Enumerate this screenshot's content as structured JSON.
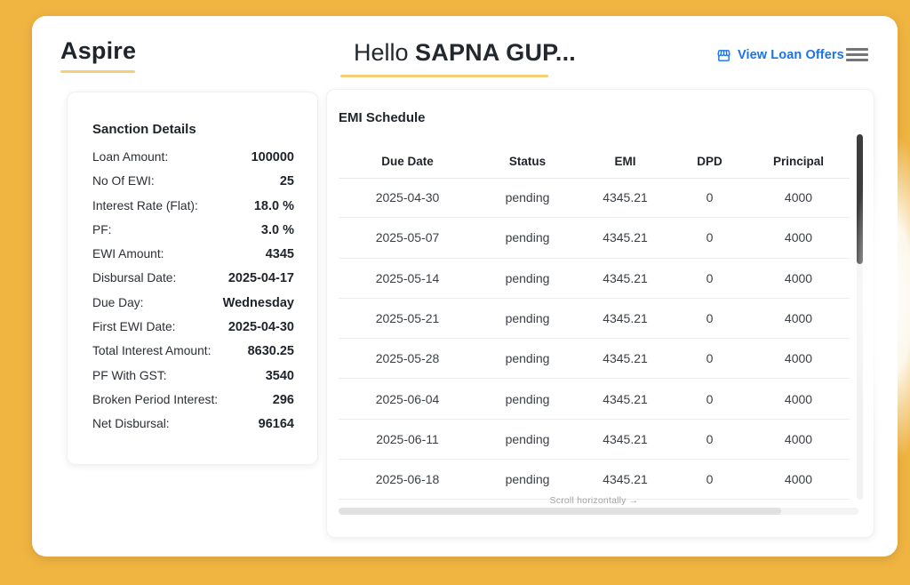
{
  "brand": {
    "name": "Aspire"
  },
  "greeting": {
    "prefix": "Hello ",
    "name": "SAPNA GUP..."
  },
  "header": {
    "view_loan_offers_label": "View Loan Offers"
  },
  "sanction": {
    "title": "Sanction Details",
    "rows": [
      {
        "label": "Loan Amount:",
        "value": "100000"
      },
      {
        "label": "No Of EWI:",
        "value": "25"
      },
      {
        "label": "Interest Rate (Flat):",
        "value": "18.0 %"
      },
      {
        "label": "PF:",
        "value": "3.0 %"
      },
      {
        "label": "EWI Amount:",
        "value": "4345"
      },
      {
        "label": "Disbursal Date:",
        "value": "2025-04-17"
      },
      {
        "label": "Due Day:",
        "value": "Wednesday"
      },
      {
        "label": "First EWI Date:",
        "value": "2025-04-30"
      },
      {
        "label": "Total Interest Amount:",
        "value": "8630.25"
      },
      {
        "label": "PF With GST:",
        "value": "3540"
      },
      {
        "label": "Broken Period Interest:",
        "value": "296"
      },
      {
        "label": "Net Disbursal:",
        "value": "96164"
      }
    ]
  },
  "emi": {
    "title": "EMI Schedule",
    "columns": [
      "Due Date",
      "Status",
      "EMI",
      "DPD",
      "Principal"
    ],
    "rows": [
      [
        "2025-04-30",
        "pending",
        "4345.21",
        "0",
        "4000"
      ],
      [
        "2025-05-07",
        "pending",
        "4345.21",
        "0",
        "4000"
      ],
      [
        "2025-05-14",
        "pending",
        "4345.21",
        "0",
        "4000"
      ],
      [
        "2025-05-21",
        "pending",
        "4345.21",
        "0",
        "4000"
      ],
      [
        "2025-05-28",
        "pending",
        "4345.21",
        "0",
        "4000"
      ],
      [
        "2025-06-04",
        "pending",
        "4345.21",
        "0",
        "4000"
      ],
      [
        "2025-06-11",
        "pending",
        "4345.21",
        "0",
        "4000"
      ],
      [
        "2025-06-18",
        "pending",
        "4345.21",
        "0",
        "4000"
      ]
    ],
    "scroll_hint": "Scroll horizontally →"
  },
  "colors": {
    "background": "#F0B441",
    "accent_underline": "#F5CE76",
    "link_blue": "#1A73E8",
    "text_dark": "#1F232B",
    "scrollbar_thumb": "#3D3D3D"
  }
}
